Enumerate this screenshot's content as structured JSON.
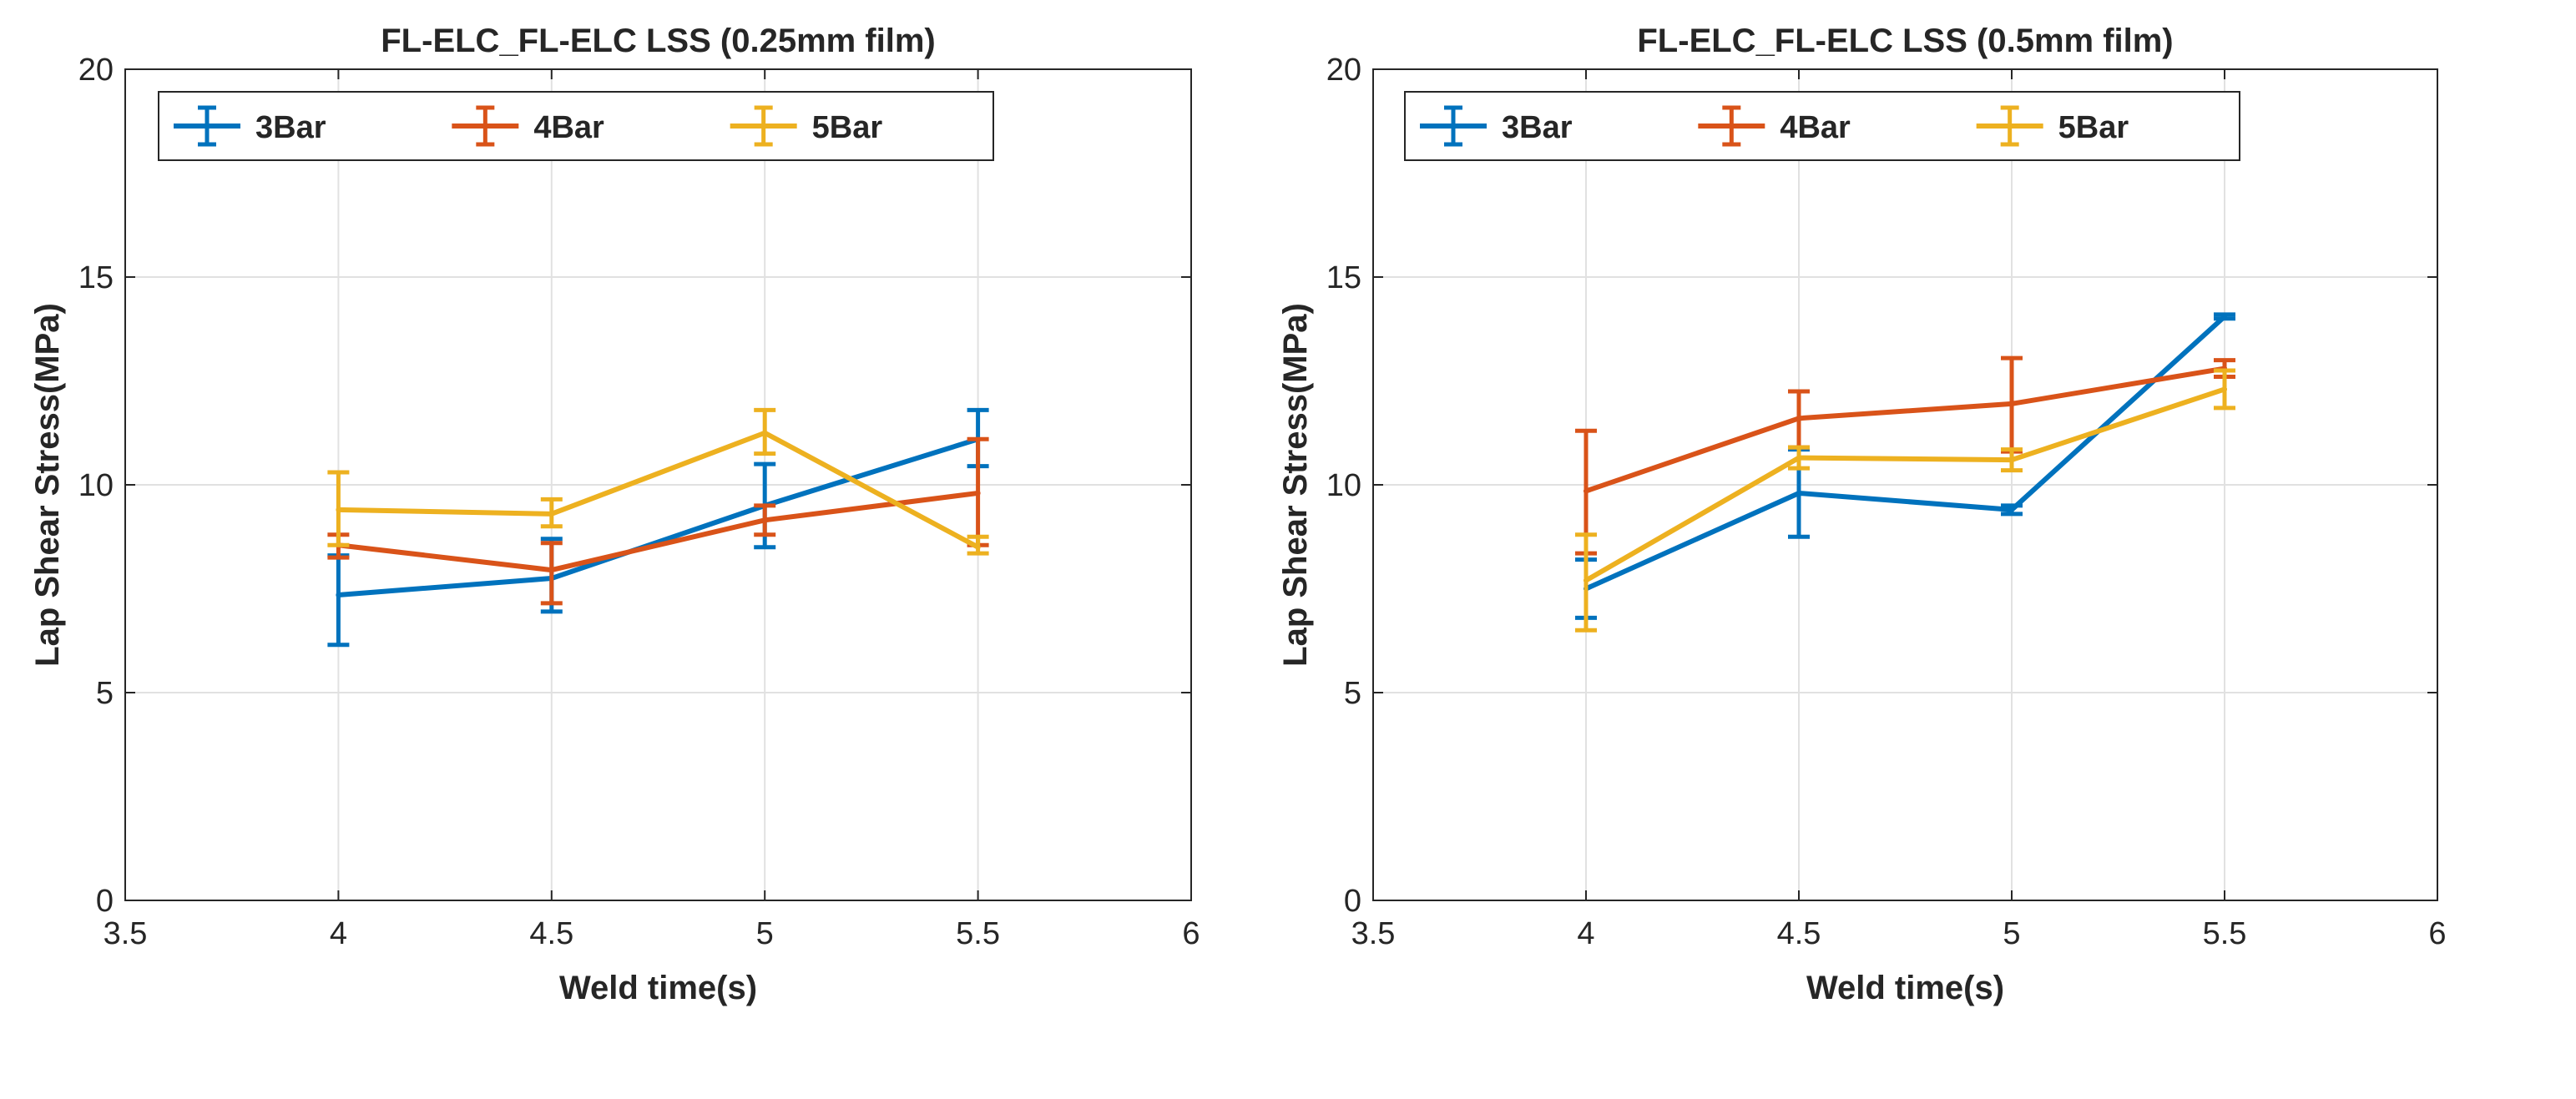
{
  "chart_data": [
    {
      "type": "line",
      "title": "FL-ELC_FL-ELC LSS (0.25mm film)",
      "xlabel": "Weld time(s)",
      "ylabel": "Lap Shear Stress(MPa)",
      "xlim": [
        3.5,
        6
      ],
      "ylim": [
        0,
        20
      ],
      "xticks": [
        3.5,
        4,
        4.5,
        5,
        5.5,
        6
      ],
      "yticks": [
        0,
        5,
        10,
        15,
        20
      ],
      "grid": true,
      "legend_position": "top-left",
      "legend_orientation": "horizontal",
      "error_bars": true,
      "x": [
        4,
        4.5,
        5,
        5.5
      ],
      "series": [
        {
          "name": "3Bar",
          "color": "#0072BD",
          "values": [
            7.35,
            7.75,
            9.5,
            11.1
          ],
          "lower": [
            6.15,
            6.95,
            8.5,
            10.45
          ],
          "upper": [
            8.3,
            8.7,
            10.5,
            11.8
          ]
        },
        {
          "name": "4Bar",
          "color": "#D95319",
          "values": [
            8.55,
            7.95,
            9.15,
            9.8
          ],
          "lower": [
            8.25,
            7.15,
            8.8,
            8.55
          ],
          "upper": [
            8.8,
            8.6,
            9.5,
            11.1
          ]
        },
        {
          "name": "5Bar",
          "color": "#EDB120",
          "values": [
            9.4,
            9.3,
            11.25,
            8.5
          ],
          "lower": [
            8.55,
            9.0,
            10.75,
            8.35
          ],
          "upper": [
            10.3,
            9.65,
            11.8,
            8.75
          ]
        }
      ]
    },
    {
      "type": "line",
      "title": "FL-ELC_FL-ELC LSS (0.5mm film)",
      "xlabel": "Weld time(s)",
      "ylabel": "Lap Shear Stress(MPa)",
      "xlim": [
        3.5,
        6
      ],
      "ylim": [
        0,
        20
      ],
      "xticks": [
        3.5,
        4,
        4.5,
        5,
        5.5,
        6
      ],
      "yticks": [
        0,
        5,
        10,
        15,
        20
      ],
      "grid": true,
      "legend_position": "top-left",
      "legend_orientation": "horizontal",
      "error_bars": true,
      "x": [
        4,
        4.5,
        5,
        5.5
      ],
      "series": [
        {
          "name": "3Bar",
          "color": "#0072BD",
          "values": [
            7.5,
            9.8,
            9.4,
            14.05
          ],
          "lower": [
            6.8,
            8.75,
            9.3,
            14.0
          ],
          "upper": [
            8.2,
            10.85,
            9.5,
            14.1
          ]
        },
        {
          "name": "4Bar",
          "color": "#D95319",
          "values": [
            9.85,
            11.6,
            11.95,
            12.8
          ],
          "lower": [
            8.35,
            10.9,
            10.8,
            12.6
          ],
          "upper": [
            11.3,
            12.25,
            13.05,
            13.0
          ]
        },
        {
          "name": "5Bar",
          "color": "#EDB120",
          "values": [
            7.7,
            10.65,
            10.6,
            12.3
          ],
          "lower": [
            6.5,
            10.4,
            10.35,
            11.85
          ],
          "upper": [
            8.8,
            10.9,
            10.85,
            12.75
          ]
        }
      ]
    }
  ]
}
